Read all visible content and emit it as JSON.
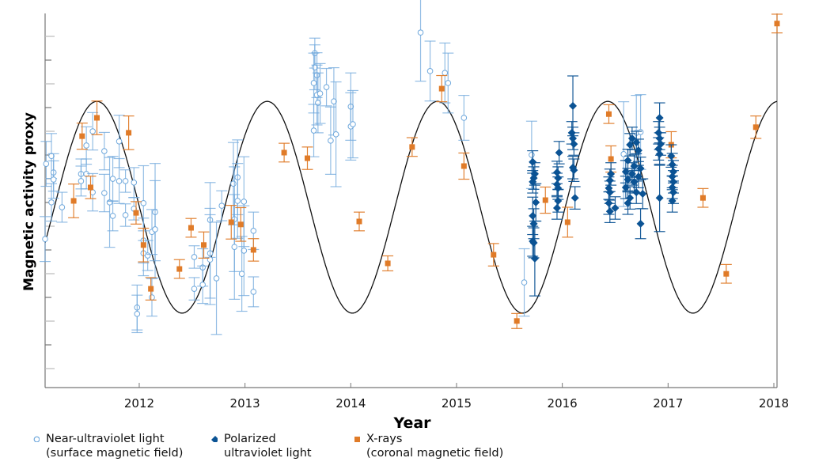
{
  "chart_data": {
    "type": "scatter",
    "xlabel": "Year",
    "ylabel": "Magnetic activity proxy",
    "xlim": [
      2011.11,
      2018.03
    ],
    "ylim": [
      0,
      10
    ],
    "x_ticks": [
      "2012",
      "2013",
      "2014",
      "2015",
      "2016",
      "2017",
      "2018"
    ],
    "x_tick_values": [
      2012,
      2013,
      2014,
      2015,
      2016,
      2017,
      2018
    ],
    "y_tick_labels": "none",
    "grid": false,
    "legend_placement": "bottom",
    "colors": {
      "near_uv": "#6fa8dc",
      "polarized": "#0b5394",
      "xrays": "#e07b28",
      "model": "#111111"
    },
    "model_curve": {
      "name": "sinusoidal cycle",
      "center": 4.82,
      "amplitude": 2.83,
      "period_years": 1.61,
      "peak_year": 2011.6
    },
    "series": [
      {
        "name": "Near-ultraviolet light",
        "note": "(surface magnetic field)",
        "marker": "open-circle",
        "points": [
          [
            2011.12,
            5.98,
            0.6
          ],
          [
            2011.17,
            6.19,
            0.6
          ],
          [
            2011.19,
            5.75,
            0.5
          ],
          [
            2011.19,
            5.56,
            0.5
          ],
          [
            2011.17,
            4.95,
            0.5
          ],
          [
            2011.27,
            4.82,
            0.4
          ],
          [
            2011.11,
            3.97,
            0.6
          ],
          [
            2011.45,
            5.71,
            0.4
          ],
          [
            2011.5,
            5.71,
            0.4
          ],
          [
            2011.45,
            5.52,
            0.4
          ],
          [
            2011.5,
            6.47,
            0.5
          ],
          [
            2011.56,
            6.85,
            0.5
          ],
          [
            2011.56,
            5.22,
            0.5
          ],
          [
            2011.67,
            6.32,
            0.5
          ],
          [
            2011.67,
            5.2,
            0.5
          ],
          [
            2011.72,
            4.95,
            1.2
          ],
          [
            2011.75,
            5.58,
            0.6
          ],
          [
            2011.81,
            6.58,
            0.7
          ],
          [
            2011.81,
            5.52,
            0.6
          ],
          [
            2011.75,
            4.59,
            0.4
          ],
          [
            2011.87,
            5.52,
            0.3
          ],
          [
            2011.87,
            4.61,
            0.3
          ],
          [
            2011.95,
            5.48,
            0.4
          ],
          [
            2011.95,
            4.78,
            0.3
          ],
          [
            2012.04,
            4.93,
            1.0
          ],
          [
            2012.04,
            3.93,
            0.6
          ],
          [
            2012.04,
            3.59,
            0.6
          ],
          [
            2012.08,
            3.53,
            0.4
          ],
          [
            2012.12,
            4.16,
            0.6
          ],
          [
            2012.15,
            4.69,
            1.3
          ],
          [
            2012.15,
            4.23,
            1.3
          ],
          [
            2011.98,
            2.14,
            0.6
          ],
          [
            2011.98,
            1.97,
            0.5
          ],
          [
            2012.12,
            2.41,
            0.5
          ],
          [
            2012.52,
            3.49,
            0.3
          ],
          [
            2012.52,
            2.64,
            0.3
          ],
          [
            2012.6,
            3.21,
            0.5
          ],
          [
            2012.6,
            2.75,
            0.5
          ],
          [
            2012.67,
            4.48,
            1.0
          ],
          [
            2012.67,
            3.59,
            1.2
          ],
          [
            2012.67,
            3.42,
            1.2
          ],
          [
            2012.73,
            2.92,
            1.5
          ],
          [
            2012.78,
            4.86,
            0.4
          ],
          [
            2012.89,
            5.45,
            1.1
          ],
          [
            2012.93,
            5.62,
            1.0
          ],
          [
            2012.93,
            4.99,
            1.0
          ],
          [
            2012.99,
            4.97,
            1.2
          ],
          [
            2012.9,
            4.5,
            1.4
          ],
          [
            2012.9,
            3.76,
            1.4
          ],
          [
            2012.99,
            3.66,
            1.2
          ],
          [
            2012.97,
            3.04,
            1.0
          ],
          [
            2013.08,
            4.19,
            0.5
          ],
          [
            2013.08,
            2.56,
            0.4
          ],
          [
            2013.66,
            8.94,
            0.4
          ],
          [
            2013.66,
            8.56,
            0.6
          ],
          [
            2013.68,
            8.35,
            0.6
          ],
          [
            2013.65,
            8.14,
            0.8
          ],
          [
            2013.68,
            7.82,
            0.8
          ],
          [
            2013.69,
            7.61,
            0.8
          ],
          [
            2013.65,
            6.87,
            0.7
          ],
          [
            2013.71,
            7.86,
            0.8
          ],
          [
            2013.77,
            8.03,
            0.5
          ],
          [
            2013.81,
            6.6,
            0.9
          ],
          [
            2013.84,
            7.65,
            0.9
          ],
          [
            2013.86,
            6.77,
            1.4
          ],
          [
            2014.0,
            7.51,
            0.9
          ],
          [
            2014.0,
            6.98,
            0.9
          ],
          [
            2014.02,
            7.04,
            0.9
          ],
          [
            2014.66,
            9.49,
            1.3
          ],
          [
            2014.75,
            8.46,
            0.8
          ],
          [
            2014.89,
            8.41,
            0.8
          ],
          [
            2014.92,
            8.14,
            0.8
          ],
          [
            2015.07,
            7.21,
            0.6
          ],
          [
            2015.64,
            2.81,
            0.9
          ],
          [
            2015.71,
            6.22,
            0.9
          ],
          [
            2016.7,
            6.81,
            1.0
          ],
          [
            2016.74,
            6.83,
            1.0
          ],
          [
            2016.58,
            6.24,
            1.4
          ]
        ]
      },
      {
        "name": "Polarized ultraviolet light",
        "marker": "filled-diamond",
        "points": [
          [
            2015.72,
            6.03,
            0.3
          ],
          [
            2015.74,
            5.71,
            0.3
          ],
          [
            2015.73,
            5.6,
            0.3
          ],
          [
            2015.72,
            5.5,
            0.3
          ],
          [
            2015.75,
            4.95,
            0.5
          ],
          [
            2015.72,
            4.59,
            0.5
          ],
          [
            2015.73,
            4.38,
            0.4
          ],
          [
            2015.72,
            3.91,
            0.4
          ],
          [
            2015.73,
            3.87,
            0.4
          ],
          [
            2015.74,
            3.45,
            1.0
          ],
          [
            2015.97,
            6.28,
            0.3
          ],
          [
            2015.95,
            5.75,
            0.3
          ],
          [
            2015.96,
            5.6,
            0.3
          ],
          [
            2015.95,
            5.43,
            0.3
          ],
          [
            2015.96,
            5.33,
            0.3
          ],
          [
            2015.96,
            4.99,
            0.3
          ],
          [
            2015.95,
            4.8,
            0.3
          ],
          [
            2016.1,
            7.53,
            0.8
          ],
          [
            2016.09,
            6.81,
            0.3
          ],
          [
            2016.1,
            6.66,
            0.3
          ],
          [
            2016.11,
            6.51,
            0.3
          ],
          [
            2016.1,
            5.88,
            0.3
          ],
          [
            2016.11,
            5.81,
            0.3
          ],
          [
            2016.12,
            5.07,
            0.3
          ],
          [
            2016.46,
            5.71,
            0.3
          ],
          [
            2016.45,
            5.54,
            0.3
          ],
          [
            2016.44,
            5.33,
            0.3
          ],
          [
            2016.45,
            5.22,
            0.3
          ],
          [
            2016.44,
            4.93,
            0.3
          ],
          [
            2016.45,
            4.71,
            0.3
          ],
          [
            2016.5,
            4.8,
            0.3
          ],
          [
            2016.66,
            6.66,
            0.3
          ],
          [
            2016.7,
            6.55,
            0.3
          ],
          [
            2016.64,
            6.49,
            0.3
          ],
          [
            2016.72,
            6.34,
            0.3
          ],
          [
            2016.62,
            6.07,
            0.3
          ],
          [
            2016.68,
            5.92,
            0.3
          ],
          [
            2016.74,
            5.86,
            0.3
          ],
          [
            2016.6,
            5.77,
            0.3
          ],
          [
            2016.66,
            5.71,
            0.3
          ],
          [
            2016.72,
            5.64,
            0.3
          ],
          [
            2016.62,
            5.56,
            0.3
          ],
          [
            2016.68,
            5.5,
            0.3
          ],
          [
            2016.6,
            5.35,
            0.3
          ],
          [
            2016.7,
            5.22,
            0.3
          ],
          [
            2016.64,
            5.07,
            0.3
          ],
          [
            2016.62,
            4.93,
            0.3
          ],
          [
            2016.76,
            5.18,
            0.4
          ],
          [
            2016.74,
            4.38,
            0.4
          ],
          [
            2016.92,
            7.21,
            0.4
          ],
          [
            2016.91,
            6.81,
            0.3
          ],
          [
            2016.92,
            6.66,
            0.3
          ],
          [
            2016.93,
            6.51,
            0.3
          ],
          [
            2016.91,
            6.38,
            0.3
          ],
          [
            2016.92,
            6.24,
            0.3
          ],
          [
            2016.92,
            5.07,
            0.9
          ],
          [
            2017.03,
            6.19,
            0.3
          ],
          [
            2017.04,
            5.96,
            0.3
          ],
          [
            2017.05,
            5.77,
            0.3
          ],
          [
            2017.04,
            5.64,
            0.3
          ],
          [
            2017.05,
            5.5,
            0.3
          ],
          [
            2017.04,
            5.35,
            0.3
          ],
          [
            2017.05,
            5.22,
            0.3
          ],
          [
            2017.04,
            4.99,
            0.3
          ]
        ]
      },
      {
        "name": "X-rays",
        "note": "(coronal magnetic field)",
        "marker": "filled-square",
        "points": [
          [
            2011.38,
            4.99,
            0.45
          ],
          [
            2011.46,
            6.72,
            0.35
          ],
          [
            2011.54,
            5.35,
            0.3
          ],
          [
            2011.6,
            7.21,
            0.45
          ],
          [
            2011.9,
            6.81,
            0.45
          ],
          [
            2011.97,
            4.67,
            0.3
          ],
          [
            2012.04,
            3.81,
            0.45
          ],
          [
            2012.11,
            2.64,
            0.3
          ],
          [
            2012.38,
            3.17,
            0.25
          ],
          [
            2012.49,
            4.27,
            0.25
          ],
          [
            2012.61,
            3.81,
            0.35
          ],
          [
            2012.87,
            4.42,
            0.45
          ],
          [
            2012.96,
            4.36,
            0.45
          ],
          [
            2013.08,
            3.68,
            0.3
          ],
          [
            2013.37,
            6.28,
            0.25
          ],
          [
            2013.59,
            6.13,
            0.3
          ],
          [
            2014.08,
            4.44,
            0.25
          ],
          [
            2014.35,
            3.32,
            0.2
          ],
          [
            2014.58,
            6.43,
            0.25
          ],
          [
            2014.86,
            7.99,
            0.35
          ],
          [
            2015.07,
            5.92,
            0.35
          ],
          [
            2015.35,
            3.55,
            0.3
          ],
          [
            2015.57,
            1.78,
            0.2
          ],
          [
            2015.84,
            5.01,
            0.35
          ],
          [
            2016.05,
            4.42,
            0.4
          ],
          [
            2016.44,
            7.31,
            0.25
          ],
          [
            2016.46,
            6.11,
            0.35
          ],
          [
            2017.03,
            6.49,
            0.35
          ],
          [
            2017.33,
            5.07,
            0.25
          ],
          [
            2017.55,
            3.04,
            0.25
          ],
          [
            2017.83,
            6.96,
            0.3
          ],
          [
            2018.03,
            9.73,
            0.25
          ]
        ]
      }
    ]
  },
  "legend": [
    {
      "line1": "Near-ultraviolet light",
      "line2": "(surface magnetic field)"
    },
    {
      "line1": "Polarized",
      "line2": "ultraviolet light"
    },
    {
      "line1": "X-rays",
      "line2": "(coronal magnetic field)"
    }
  ]
}
